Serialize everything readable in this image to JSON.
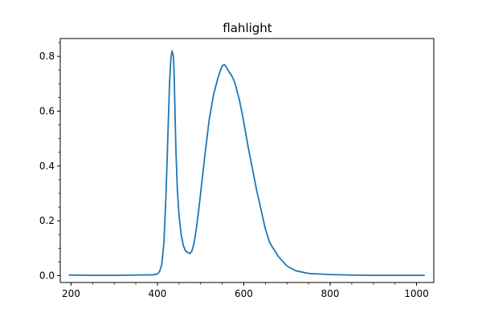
{
  "chart_data": {
    "type": "line",
    "title": "flahlight",
    "xlabel": "",
    "ylabel": "",
    "xlim": [
      175,
      1040
    ],
    "ylim": [
      -0.025,
      0.865
    ],
    "grid": false,
    "x_ticks": [
      200,
      400,
      600,
      800,
      1000
    ],
    "y_ticks": [
      0.0,
      0.2,
      0.4,
      0.6,
      0.8
    ],
    "x_tick_labels": [
      "200",
      "400",
      "600",
      "800",
      "1000"
    ],
    "y_tick_labels": [
      "0.0",
      "0.2",
      "0.4",
      "0.6",
      "0.8"
    ],
    "series": [
      {
        "color": "#1f77b4",
        "x": [
          196,
          250,
          300,
          350,
          390,
          400,
          405,
          410,
          415,
          420,
          425,
          428,
          431,
          434,
          437,
          439,
          441,
          443,
          446,
          450,
          455,
          460,
          465,
          470,
          475,
          480,
          485,
          490,
          495,
          500,
          510,
          520,
          530,
          540,
          545,
          550,
          555,
          560,
          565,
          570,
          575,
          580,
          590,
          600,
          610,
          620,
          630,
          640,
          650,
          660,
          680,
          700,
          720,
          750,
          800,
          850,
          900,
          950,
          1000,
          1018
        ],
        "y": [
          0.002,
          0.001,
          0.001,
          0.002,
          0.003,
          0.006,
          0.015,
          0.04,
          0.12,
          0.3,
          0.55,
          0.7,
          0.79,
          0.82,
          0.8,
          0.72,
          0.58,
          0.45,
          0.32,
          0.22,
          0.15,
          0.11,
          0.09,
          0.085,
          0.08,
          0.09,
          0.12,
          0.17,
          0.23,
          0.3,
          0.44,
          0.57,
          0.66,
          0.72,
          0.745,
          0.765,
          0.77,
          0.76,
          0.745,
          0.735,
          0.72,
          0.7,
          0.64,
          0.56,
          0.47,
          0.39,
          0.31,
          0.24,
          0.17,
          0.12,
          0.07,
          0.035,
          0.018,
          0.008,
          0.004,
          0.002,
          0.001,
          0.001,
          0.001,
          0.001
        ]
      }
    ]
  }
}
